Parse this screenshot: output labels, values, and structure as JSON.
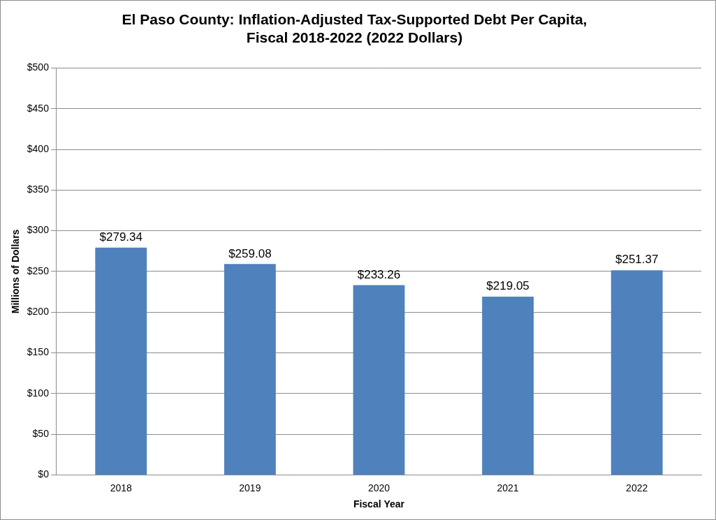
{
  "chart_data": {
    "type": "bar",
    "title": [
      "El Paso County: Inflation-Adjusted Tax-Supported Debt Per Capita,",
      "Fiscal 2018-2022 (2022 Dollars)"
    ],
    "x_label": "Fiscal Year",
    "y_label": "Millions of Dollars",
    "categories": [
      "2018",
      "2019",
      "2020",
      "2021",
      "2022"
    ],
    "values": [
      279.34,
      259.08,
      233.26,
      219.05,
      251.37
    ],
    "value_labels": [
      "$279.34",
      "$259.08",
      "$233.26",
      "$219.05",
      "$251.37"
    ],
    "color": "#4f81bd",
    "ylim": [
      0,
      500
    ],
    "yticks": [
      {
        "value": 0,
        "label": "$0"
      },
      {
        "value": 50,
        "label": "$50"
      },
      {
        "value": 100,
        "label": "$100"
      },
      {
        "value": 150,
        "label": "$150"
      },
      {
        "value": 200,
        "label": "$200"
      },
      {
        "value": 250,
        "label": "$250"
      },
      {
        "value": 300,
        "label": "$300"
      },
      {
        "value": 350,
        "label": "$350"
      },
      {
        "value": 400,
        "label": "$400"
      },
      {
        "value": 450,
        "label": "$450"
      },
      {
        "value": 500,
        "label": "$500"
      }
    ],
    "grid": true,
    "data_labels": true
  }
}
